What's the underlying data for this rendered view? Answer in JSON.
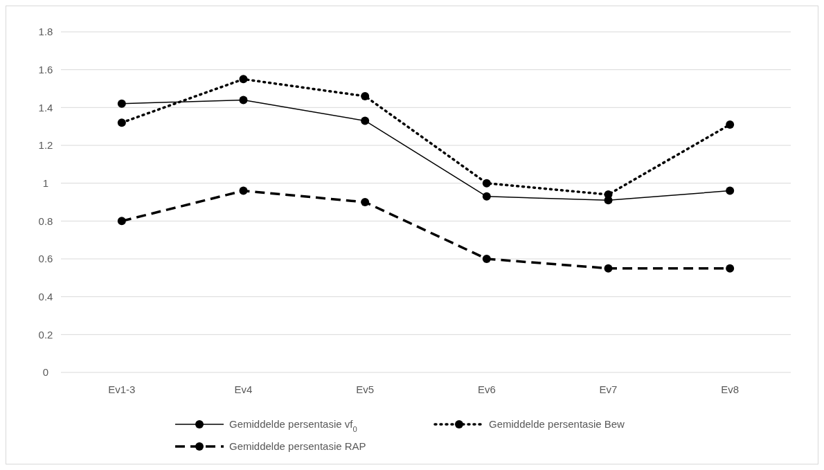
{
  "chart_data": {
    "type": "line",
    "categories": [
      "Ev1-3",
      "Ev4",
      "Ev5",
      "Ev6",
      "Ev7",
      "Ev8"
    ],
    "series": [
      {
        "name": "Gemiddelde persentasie vf$_{0}$",
        "color": "#000000",
        "line_style": "solid",
        "values": [
          1.42,
          1.44,
          1.33,
          0.93,
          0.91,
          0.96
        ]
      },
      {
        "name": "Gemiddelde persentasie Bew",
        "color": "#000000",
        "line_style": "dotted",
        "values": [
          1.32,
          1.55,
          1.46,
          1.0,
          0.94,
          1.31
        ]
      },
      {
        "name": "Gemiddelde persentasie RAP",
        "color": "#000000",
        "line_style": "dashed",
        "values": [
          0.8,
          0.96,
          0.9,
          0.6,
          0.55,
          0.55
        ]
      }
    ],
    "ylim": [
      0,
      1.8
    ],
    "yticks": [
      0,
      0.2,
      0.4,
      0.6,
      0.8,
      1,
      1.2,
      1.4,
      1.6,
      1.8
    ],
    "grid": "y",
    "legend": "bottom",
    "marker": "circle"
  }
}
